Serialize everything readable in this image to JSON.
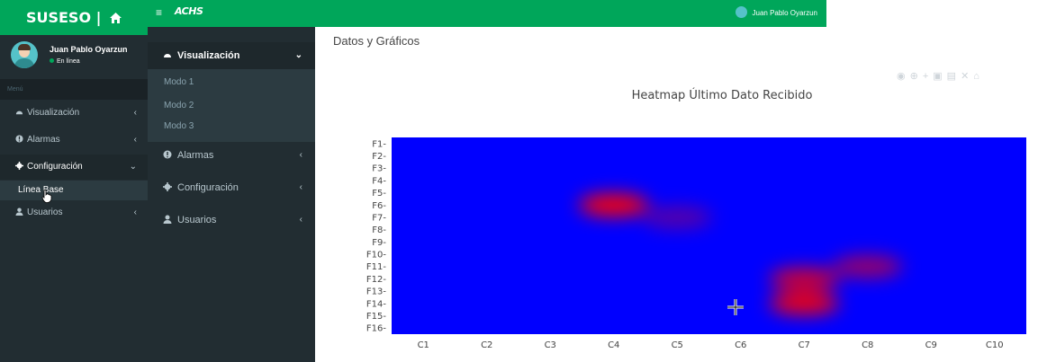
{
  "brand": {
    "title": "SUSESO |",
    "icon": "home-icon"
  },
  "user": {
    "name": "Juan Pablo Oyarzun",
    "status": "En línea",
    "avatar_icon": "user-avatar-icon"
  },
  "sidebar1": {
    "menu_header": "Menú",
    "items": [
      {
        "label": "Visualización",
        "icon": "dashboard-icon",
        "chevron": "‹"
      },
      {
        "label": "Alarmas",
        "icon": "alert-icon",
        "chevron": "‹"
      },
      {
        "label": "Configuración",
        "icon": "gear-icon",
        "chevron": "⌄"
      },
      {
        "label": "Usuarios",
        "icon": "user-icon",
        "chevron": "‹"
      }
    ],
    "subitem": "Línea Base"
  },
  "topbar": {
    "menu_icon": "≡",
    "logo": "ACHS",
    "user_name": "Juan Pablo Oyarzun"
  },
  "sidebar2": {
    "active": {
      "label": "Visualización",
      "chevron": "⌄"
    },
    "subs": [
      "Modo 1",
      "Modo 2",
      "Modo 3"
    ],
    "items": [
      {
        "label": "Alarmas",
        "chevron": "‹"
      },
      {
        "label": "Configuración",
        "chevron": "‹"
      },
      {
        "label": "Usuarios",
        "chevron": "‹"
      }
    ]
  },
  "content": {
    "title": "Datos y Gráficos"
  },
  "modebar": {
    "icons": [
      "camera-icon",
      "zoom-icon",
      "pan-icon",
      "zoom-in-icon",
      "zoom-out-icon",
      "autoscale-icon",
      "home-icon"
    ]
  },
  "chart_data": {
    "type": "heatmap",
    "title": "Heatmap Último Dato Recibido",
    "x": [
      "C1",
      "C2",
      "C3",
      "C4",
      "C5",
      "C6",
      "C7",
      "C8",
      "C9",
      "C10"
    ],
    "y": [
      "F1",
      "F2",
      "F3",
      "F4",
      "F5",
      "F6",
      "F7",
      "F8",
      "F9",
      "F10",
      "F11",
      "F12",
      "F13",
      "F14",
      "F15",
      "F16"
    ],
    "colorscale": [
      "#0000ff",
      "#ff0000"
    ],
    "hotspots": [
      {
        "x": "C4",
        "y": "F6",
        "intensity": 1.0
      },
      {
        "x": "C5",
        "y": "F7",
        "intensity": 0.35
      },
      {
        "x": "C7",
        "y": "F12",
        "intensity": 0.8
      },
      {
        "x": "C7",
        "y": "F14",
        "intensity": 0.95
      },
      {
        "x": "C8",
        "y": "F11",
        "intensity": 0.6
      }
    ]
  }
}
